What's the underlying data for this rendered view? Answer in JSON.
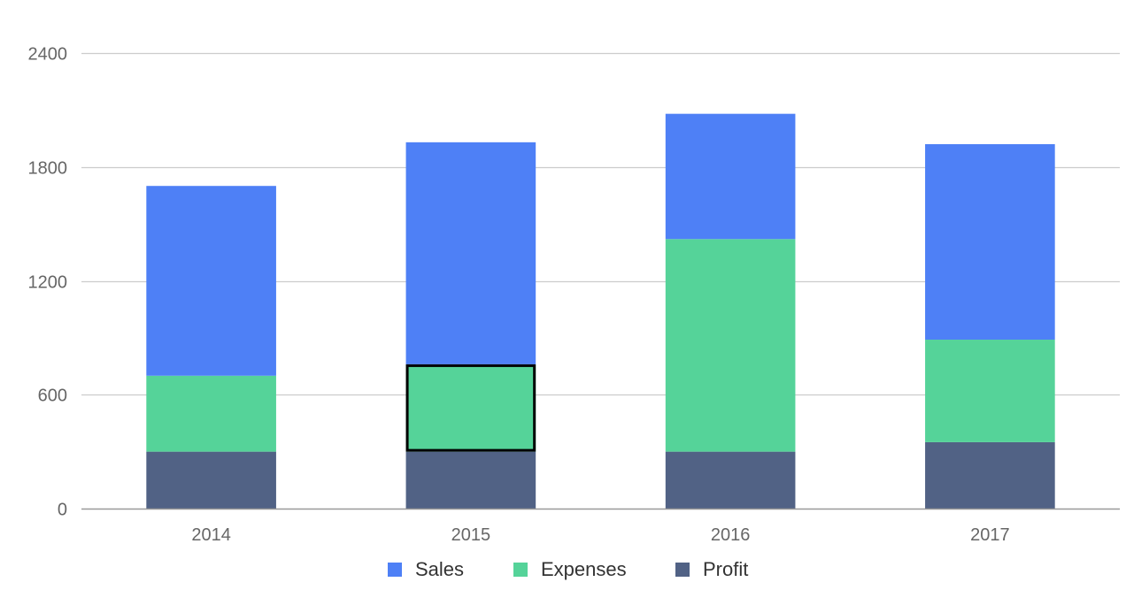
{
  "chart_data": {
    "type": "bar",
    "stacked": true,
    "title": "",
    "xlabel": "",
    "ylabel": "",
    "categories": [
      "2014",
      "2015",
      "2016",
      "2017"
    ],
    "series": [
      {
        "name": "Profit",
        "color": "#516285",
        "values": [
          300,
          300,
          300,
          350
        ]
      },
      {
        "name": "Expenses",
        "color": "#55d399",
        "values": [
          400,
          460,
          1120,
          540
        ]
      },
      {
        "name": "Sales",
        "color": "#4e80f6",
        "values": [
          1000,
          1170,
          660,
          1030
        ]
      }
    ],
    "legend_order": [
      "Sales",
      "Expenses",
      "Profit"
    ],
    "ylim": [
      0,
      2400
    ],
    "yticks": [
      0,
      600,
      1200,
      1800,
      2400
    ],
    "grid": true,
    "legend": "bottom",
    "highlighted": {
      "series": "Expenses",
      "category": "2015"
    }
  }
}
